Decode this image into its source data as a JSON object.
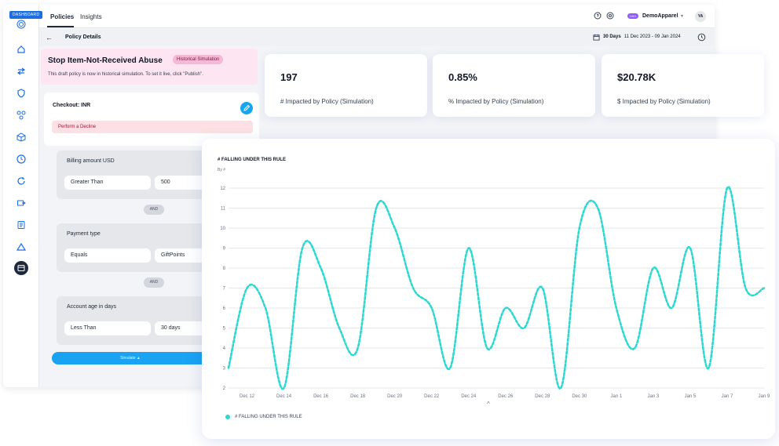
{
  "app": {
    "dashboard_tag": "DASHBOARD",
    "tabs": [
      {
        "label": "Policies"
      },
      {
        "label": "Insights"
      }
    ],
    "org": {
      "badge": "1001",
      "name": "DemoApparel",
      "chevron": "▾"
    },
    "avatar": "YA"
  },
  "subbar": {
    "back": "←",
    "title": "Policy Details",
    "range_label": "30 Days",
    "range_dates": "11 Dec 2023 - 09 Jan 2024"
  },
  "policy": {
    "name": "Stop Item-Not-Received Abuse",
    "badge": "Historical Simulation",
    "note": "This draft policy is now in historical simulation. To set it live, click \"Publish\".",
    "checkout_title": "Checkout: INR",
    "action": "Perform a Decline",
    "conditions": [
      {
        "field": "Billing amount USD",
        "operator": "Greater Than",
        "value": "500"
      },
      {
        "field": "Payment type",
        "operator": "Equals",
        "value": "GiftPoints"
      },
      {
        "field": "Account age in days",
        "operator": "Less Than",
        "value": "30 days"
      }
    ],
    "joiner": "AND",
    "simulate_label": "Simulate ▲"
  },
  "stats": [
    {
      "value": "197",
      "label": "# Impacted by Policy (Simulation)"
    },
    {
      "value": "0.85%",
      "label": "% Impacted by Policy (Simulation)"
    },
    {
      "value": "$20.78K",
      "label": "$ Impacted by Policy (Simulation)"
    }
  ],
  "chart": {
    "title": "# FALLING UNDER THIS RULE",
    "subtitle": "By #",
    "caret": "^",
    "legend": "# FALLING UNDER THIS RULE"
  },
  "colors": {
    "accent": "#2dd8d0",
    "primary": "#1aa3f3",
    "badge_pink": "#f7b8d7"
  },
  "icons": [
    "fingerprint-icon",
    "home-icon",
    "arrows-icon",
    "shield-icon",
    "network-icon",
    "cube-icon",
    "clock-icon",
    "refresh-icon",
    "export-icon",
    "document-icon",
    "triangle-icon",
    "calendar-icon",
    "help-icon",
    "settings-icon",
    "history-icon",
    "edit-icon"
  ],
  "chart_data": {
    "type": "line",
    "title": "# FALLING UNDER THIS RULE",
    "subtitle": "By #",
    "ylim": [
      2,
      12
    ],
    "y_ticks": [
      2,
      3,
      4,
      5,
      6,
      7,
      8,
      9,
      10,
      11,
      12
    ],
    "x_labels": [
      "Dec 12",
      "Dec 14",
      "Dec 16",
      "Dec 18",
      "Dec 20",
      "Dec 22",
      "Dec 24",
      "Dec 26",
      "Dec 28",
      "Dec 30",
      "Jan 1",
      "Jan 3",
      "Jan 5",
      "Jan 7",
      "Jan 9"
    ],
    "grid": true,
    "legend_position": "bottom-left",
    "series": [
      {
        "name": "# FALLING UNDER THIS RULE",
        "style": "dashed",
        "x": [
          "Dec 11",
          "Dec 12",
          "Dec 13",
          "Dec 14",
          "Dec 15",
          "Dec 16",
          "Dec 17",
          "Dec 18",
          "Dec 19",
          "Dec 20",
          "Dec 21",
          "Dec 22",
          "Dec 23",
          "Dec 24",
          "Dec 25",
          "Dec 26",
          "Dec 27",
          "Dec 28",
          "Dec 29",
          "Dec 30",
          "Dec 31",
          "Jan 1",
          "Jan 2",
          "Jan 3",
          "Jan 4",
          "Jan 5",
          "Jan 6",
          "Jan 7",
          "Jan 8",
          "Jan 9"
        ],
        "values": [
          3,
          7,
          6,
          2,
          9,
          8,
          5,
          4,
          11,
          10,
          7,
          6,
          3,
          9,
          4,
          6,
          5,
          7,
          2,
          10,
          11,
          6,
          4,
          8,
          6,
          9,
          3,
          12,
          7,
          7
        ]
      }
    ]
  }
}
